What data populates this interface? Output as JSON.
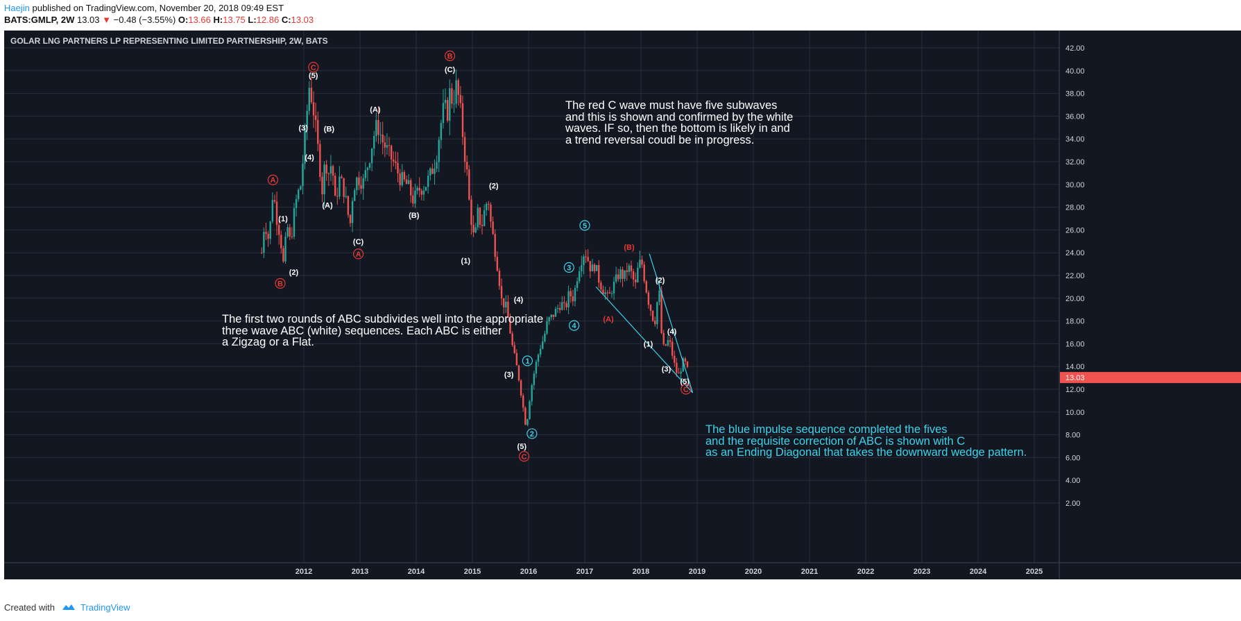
{
  "header": {
    "author": "Haejin",
    "published_text": "published on TradingView.com, November 20, 2018 09:49 EST",
    "symbol_line": "BATS:GMLP, 2W",
    "last": "13.03",
    "change": "−0.48 (−3.55%)",
    "open_label": "O:",
    "open": "13.66",
    "high_label": "H:",
    "high": "13.75",
    "low_label": "L:",
    "low": "12.86",
    "close_label": "C:",
    "close": "13.03",
    "down_arrow": "▼"
  },
  "chart_title": "GOLAR LNG PARTNERS LP REPRESENTING LIMITED PARTNERSHIP, 2W, BATS",
  "colors": {
    "background": "#131722",
    "grid": "#2a2e39",
    "up": "#26a69a",
    "down": "#ef5350",
    "white_label": "#ffffff",
    "red_label": "#e53935",
    "cyan_label": "#3ed2e8",
    "axis_text": "#d1d4dc",
    "price_tag": "#ef5350"
  },
  "notes": [
    {
      "id": "red-c-note",
      "color": "#ffffff",
      "lines": [
        "The red C wave must have five subwaves",
        "and this is shown and confirmed by the white",
        "waves. IF so, then the bottom is likely in and",
        "a trend reversal coudl be in progress."
      ]
    },
    {
      "id": "abc-note",
      "color": "#ffffff",
      "lines": [
        "The first two rounds of ABC subdivides well into the appropriate",
        "three wave ABC (white) sequences. Each ABC is either",
        "a Zigzag or a Flat."
      ]
    },
    {
      "id": "blue-impulse-note",
      "color": "#3ed2e8",
      "lines": [
        "The blue impulse sequence completed the fives",
        "and the requisite correction of ABC is shown with C",
        "as an Ending Diagonal that takes the downward wedge pattern."
      ]
    }
  ],
  "footer": {
    "created_with": "Created with",
    "brand": "TradingView"
  },
  "chart_data": {
    "type": "candlestick",
    "symbol": "BATS:GMLP",
    "interval": "2W",
    "y_range": [
      2,
      43
    ],
    "y_ticks": [
      "2.00",
      "4.00",
      "6.00",
      "8.00",
      "10.00",
      "12.00",
      "14.00",
      "16.00",
      "18.00",
      "20.00",
      "22.00",
      "24.00",
      "26.00",
      "28.00",
      "30.00",
      "32.00",
      "34.00",
      "36.00",
      "38.00",
      "40.00",
      "42.00"
    ],
    "x_range": [
      2011.0,
      2025.4
    ],
    "x_ticks": [
      "2012",
      "2013",
      "2014",
      "2015",
      "2016",
      "2017",
      "2018",
      "2019",
      "2020",
      "2021",
      "2022",
      "2023",
      "2024",
      "2025"
    ],
    "last_price": "13.03",
    "grid": true,
    "price_path": [
      [
        2011.25,
        24.0
      ],
      [
        2011.3,
        26.8
      ],
      [
        2011.38,
        25.0
      ],
      [
        2011.45,
        29.5
      ],
      [
        2011.52,
        27.0
      ],
      [
        2011.58,
        25.5
      ],
      [
        2011.64,
        22.8
      ],
      [
        2011.7,
        26.5
      ],
      [
        2011.76,
        24.8
      ],
      [
        2011.82,
        27.2
      ],
      [
        2011.88,
        29.0
      ],
      [
        2011.94,
        29.8
      ],
      [
        2012.0,
        33.0
      ],
      [
        2012.04,
        35.5
      ],
      [
        2012.1,
        38.8
      ],
      [
        2012.17,
        36.6
      ],
      [
        2012.22,
        34.5
      ],
      [
        2012.28,
        31.8
      ],
      [
        2012.33,
        29.4
      ],
      [
        2012.38,
        32.2
      ],
      [
        2012.44,
        31.0
      ],
      [
        2012.5,
        32.0
      ],
      [
        2012.56,
        28.3
      ],
      [
        2012.63,
        30.5
      ],
      [
        2012.7,
        29.8
      ],
      [
        2012.77,
        28.0
      ],
      [
        2012.82,
        26.2
      ],
      [
        2012.88,
        29.8
      ],
      [
        2012.96,
        30.6
      ],
      [
        2013.06,
        30.2
      ],
      [
        2013.16,
        32.2
      ],
      [
        2013.24,
        34.2
      ],
      [
        2013.31,
        35.3
      ],
      [
        2013.4,
        33.8
      ],
      [
        2013.5,
        32.8
      ],
      [
        2013.6,
        31.9
      ],
      [
        2013.72,
        30.5
      ],
      [
        2013.85,
        29.9
      ],
      [
        2013.95,
        28.6
      ],
      [
        2014.06,
        29.6
      ],
      [
        2014.16,
        29.9
      ],
      [
        2014.26,
        30.9
      ],
      [
        2014.36,
        32.5
      ],
      [
        2014.42,
        34.8
      ],
      [
        2014.5,
        37.0
      ],
      [
        2014.55,
        36.0
      ],
      [
        2014.6,
        38.2
      ],
      [
        2014.65,
        37.2
      ],
      [
        2014.72,
        38.8
      ],
      [
        2014.8,
        35.9
      ],
      [
        2014.85,
        33.2
      ],
      [
        2014.9,
        31.2
      ],
      [
        2014.94,
        28.6
      ],
      [
        2014.97,
        27.5
      ],
      [
        2015.0,
        25.9
      ],
      [
        2015.04,
        25.0
      ],
      [
        2015.1,
        27.6
      ],
      [
        2015.16,
        26.2
      ],
      [
        2015.22,
        27.8
      ],
      [
        2015.28,
        28.9
      ],
      [
        2015.33,
        26.5
      ],
      [
        2015.38,
        25.0
      ],
      [
        2015.46,
        22.4
      ],
      [
        2015.52,
        19.8
      ],
      [
        2015.6,
        19.2
      ],
      [
        2015.66,
        17.5
      ],
      [
        2015.72,
        15.5
      ],
      [
        2015.78,
        14.2
      ],
      [
        2015.84,
        12.6
      ],
      [
        2015.92,
        9.8
      ],
      [
        2015.96,
        8.5
      ],
      [
        2016.0,
        10.5
      ],
      [
        2016.06,
        12.5
      ],
      [
        2016.12,
        14.0
      ],
      [
        2016.2,
        15.6
      ],
      [
        2016.27,
        16.5
      ],
      [
        2016.34,
        18.0
      ],
      [
        2016.42,
        18.4
      ],
      [
        2016.5,
        19.0
      ],
      [
        2016.58,
        19.6
      ],
      [
        2016.65,
        19.0
      ],
      [
        2016.72,
        20.4
      ],
      [
        2016.8,
        20.0
      ],
      [
        2016.86,
        21.8
      ],
      [
        2016.92,
        23.2
      ],
      [
        2017.0,
        24.2
      ],
      [
        2017.05,
        23.5
      ],
      [
        2017.12,
        22.4
      ],
      [
        2017.18,
        23.0
      ],
      [
        2017.24,
        21.8
      ],
      [
        2017.3,
        21.0
      ],
      [
        2017.36,
        20.5
      ],
      [
        2017.42,
        19.9
      ],
      [
        2017.48,
        20.8
      ],
      [
        2017.55,
        21.5
      ],
      [
        2017.62,
        22.3
      ],
      [
        2017.7,
        21.8
      ],
      [
        2017.77,
        22.8
      ],
      [
        2017.84,
        22.0
      ],
      [
        2017.9,
        21.0
      ],
      [
        2017.96,
        23.1
      ],
      [
        2018.02,
        23.0
      ],
      [
        2018.08,
        21.2
      ],
      [
        2018.14,
        19.6
      ],
      [
        2018.2,
        18.6
      ],
      [
        2018.24,
        17.6
      ],
      [
        2018.28,
        19.5
      ],
      [
        2018.33,
        20.4
      ],
      [
        2018.38,
        15.5
      ],
      [
        2018.45,
        15.9
      ],
      [
        2018.5,
        16.4
      ],
      [
        2018.56,
        15.0
      ],
      [
        2018.62,
        13.6
      ],
      [
        2018.68,
        13.2
      ],
      [
        2018.74,
        14.4
      ],
      [
        2018.8,
        14.2
      ],
      [
        2018.86,
        13.03
      ]
    ],
    "wave_labels": [
      {
        "text": "A",
        "x": 2011.45,
        "y": 30.4,
        "color": "red",
        "circle": true
      },
      {
        "text": "(1)",
        "x": 2011.63,
        "y": 27.0,
        "color": "white",
        "circle": false
      },
      {
        "text": "(2)",
        "x": 2011.82,
        "y": 22.3,
        "color": "white",
        "circle": false
      },
      {
        "text": "B",
        "x": 2011.58,
        "y": 21.3,
        "color": "red",
        "circle": true
      },
      {
        "text": "(3)",
        "x": 2011.99,
        "y": 35.0,
        "color": "white",
        "circle": false
      },
      {
        "text": "(4)",
        "x": 2012.1,
        "y": 32.4,
        "color": "white",
        "circle": false
      },
      {
        "text": "(5)",
        "x": 2012.17,
        "y": 39.6,
        "color": "white",
        "circle": false
      },
      {
        "text": "C",
        "x": 2012.17,
        "y": 40.3,
        "color": "red",
        "circle": true
      },
      {
        "text": "(B)",
        "x": 2012.45,
        "y": 34.9,
        "color": "white",
        "circle": false
      },
      {
        "text": "(A)",
        "x": 2012.42,
        "y": 28.2,
        "color": "white",
        "circle": false
      },
      {
        "text": "(C)",
        "x": 2012.97,
        "y": 25.0,
        "color": "white",
        "circle": false
      },
      {
        "text": "A",
        "x": 2012.97,
        "y": 23.9,
        "color": "red",
        "circle": true
      },
      {
        "text": "(A)",
        "x": 2013.27,
        "y": 36.6,
        "color": "white",
        "circle": false
      },
      {
        "text": "(B)",
        "x": 2013.96,
        "y": 27.3,
        "color": "white",
        "circle": false
      },
      {
        "text": "B",
        "x": 2014.6,
        "y": 41.3,
        "color": "red",
        "circle": true
      },
      {
        "text": "(C)",
        "x": 2014.6,
        "y": 40.1,
        "color": "white",
        "circle": false
      },
      {
        "text": "(2)",
        "x": 2015.38,
        "y": 29.9,
        "color": "white",
        "circle": false
      },
      {
        "text": "(1)",
        "x": 2014.88,
        "y": 23.3,
        "color": "white",
        "circle": false
      },
      {
        "text": "(4)",
        "x": 2015.82,
        "y": 19.9,
        "color": "white",
        "circle": false
      },
      {
        "text": "(3)",
        "x": 2015.65,
        "y": 13.3,
        "color": "white",
        "circle": false
      },
      {
        "text": "(5)",
        "x": 2015.88,
        "y": 7.0,
        "color": "white",
        "circle": false
      },
      {
        "text": "C",
        "x": 2015.92,
        "y": 6.1,
        "color": "red",
        "circle": true
      },
      {
        "text": "1",
        "x": 2015.98,
        "y": 14.5,
        "color": "cyan",
        "circle": true
      },
      {
        "text": "2",
        "x": 2016.06,
        "y": 8.1,
        "color": "cyan",
        "circle": true
      },
      {
        "text": "3",
        "x": 2016.72,
        "y": 22.7,
        "color": "cyan",
        "circle": true
      },
      {
        "text": "4",
        "x": 2016.81,
        "y": 17.6,
        "color": "cyan",
        "circle": true
      },
      {
        "text": "5",
        "x": 2017.0,
        "y": 26.4,
        "color": "cyan",
        "circle": true
      },
      {
        "text": "(A)",
        "x": 2017.42,
        "y": 18.2,
        "color": "red",
        "circle": false
      },
      {
        "text": "(B)",
        "x": 2017.79,
        "y": 24.5,
        "color": "red",
        "circle": false
      },
      {
        "text": "(2)",
        "x": 2018.34,
        "y": 21.6,
        "color": "white",
        "circle": false
      },
      {
        "text": "(1)",
        "x": 2018.13,
        "y": 16.0,
        "color": "white",
        "circle": false
      },
      {
        "text": "(4)",
        "x": 2018.55,
        "y": 17.1,
        "color": "white",
        "circle": false
      },
      {
        "text": "(3)",
        "x": 2018.45,
        "y": 13.8,
        "color": "white",
        "circle": false
      },
      {
        "text": "(5)",
        "x": 2018.78,
        "y": 12.7,
        "color": "white",
        "circle": false
      },
      {
        "text": "C",
        "x": 2018.8,
        "y": 12.0,
        "color": "red",
        "circle": true
      }
    ],
    "trendlines": [
      {
        "x1": 2017.2,
        "y1": 21.0,
        "x2": 2018.92,
        "y2": 11.7
      },
      {
        "x1": 2018.15,
        "y1": 23.9,
        "x2": 2018.92,
        "y2": 11.7
      }
    ]
  }
}
